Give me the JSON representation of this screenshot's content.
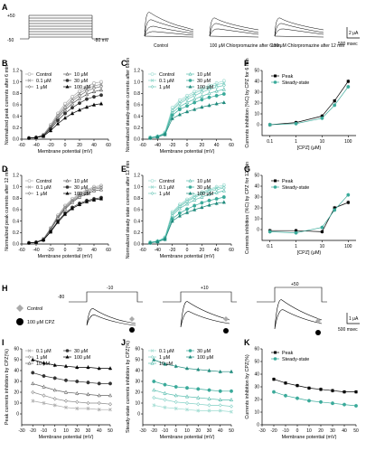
{
  "colors": {
    "black": "#000000",
    "dark": "#333333",
    "mid": "#777777",
    "light": "#aaaaaa",
    "teal": "#3aaa9a",
    "teal_light": "#7fcfc4"
  },
  "panel_letters": [
    "A",
    "B",
    "C",
    "D",
    "E",
    "F",
    "G",
    "H",
    "I",
    "J",
    "K"
  ],
  "panel_a": {
    "v_top": "+50",
    "v_bottom": "-50",
    "v_hold": "-80 mV",
    "trace_labels": [
      "Control",
      "100 μM Chlorpromazine after 6 min",
      "100 μM Chlorpromazine after 12 min"
    ],
    "scale_y": "2 μA",
    "scale_x": "500 msec"
  },
  "panel_h": {
    "legend": [
      "Control",
      "100 μM CPZ"
    ],
    "hold": "-80",
    "steps": [
      "-10",
      "+10",
      "+50"
    ],
    "scale_y": "1 μA",
    "scale_x": "500 msec"
  },
  "chart_data": [
    {
      "id": "B",
      "type": "line",
      "ylabel": "Normalized peak currents after 6 min",
      "xlabel": "Membrane potential (mV)",
      "xlim": [
        -60,
        60
      ],
      "ylim": [
        0,
        1.2
      ],
      "xticks": [
        "-60",
        "-40",
        "-20",
        "0",
        "20",
        "40",
        "60"
      ],
      "yticks": [
        "0.0",
        "0.2",
        "0.4",
        "0.6",
        "0.8",
        "1.0",
        "1.2"
      ],
      "legend": [
        "Control",
        "0.1 μM",
        "1 μM",
        "10 μM",
        "30 μM",
        "100 μM"
      ],
      "x": [
        -50,
        -40,
        -30,
        -20,
        -10,
        0,
        10,
        20,
        30,
        40,
        50
      ],
      "series": [
        {
          "name": "Control",
          "color": "#aaaaaa",
          "marker": "circle-open",
          "values": [
            0.02,
            0.03,
            0.08,
            0.25,
            0.45,
            0.62,
            0.74,
            0.84,
            0.92,
            0.98,
            1.0
          ]
        },
        {
          "name": "0.1 μM",
          "color": "#999999",
          "marker": "x",
          "values": [
            0.02,
            0.03,
            0.07,
            0.23,
            0.42,
            0.58,
            0.7,
            0.8,
            0.88,
            0.93,
            0.96
          ]
        },
        {
          "name": "1 μM",
          "color": "#777777",
          "marker": "diamond-open",
          "values": [
            0.02,
            0.03,
            0.07,
            0.22,
            0.4,
            0.55,
            0.67,
            0.76,
            0.84,
            0.89,
            0.92
          ]
        },
        {
          "name": "10 μM",
          "color": "#555555",
          "marker": "triangle-open",
          "values": [
            0.02,
            0.03,
            0.06,
            0.2,
            0.37,
            0.51,
            0.62,
            0.71,
            0.78,
            0.83,
            0.86
          ]
        },
        {
          "name": "30 μM",
          "color": "#333333",
          "marker": "circle",
          "values": [
            0.02,
            0.03,
            0.06,
            0.18,
            0.33,
            0.45,
            0.55,
            0.63,
            0.7,
            0.74,
            0.77
          ]
        },
        {
          "name": "100 μM",
          "color": "#000000",
          "marker": "triangle",
          "values": [
            0.02,
            0.03,
            0.05,
            0.15,
            0.27,
            0.37,
            0.45,
            0.51,
            0.56,
            0.6,
            0.62
          ]
        }
      ]
    },
    {
      "id": "C",
      "type": "line",
      "ylabel": "Normalized steady-state currents after 6min",
      "xlabel": "Membrane potential (mV)",
      "xlim": [
        -60,
        60
      ],
      "ylim": [
        0,
        1.2
      ],
      "xticks": [
        "-60",
        "-40",
        "-20",
        "0",
        "20",
        "40",
        "60"
      ],
      "yticks": [
        "0.0",
        "0.2",
        "0.4",
        "0.6",
        "0.8",
        "1.0",
        "1.2"
      ],
      "legend": [
        "Control",
        "0.1 μM",
        "1 μM",
        "10 μM",
        "30 μM",
        "100 μM"
      ],
      "x": [
        -50,
        -40,
        -30,
        -20,
        -10,
        0,
        10,
        20,
        30,
        40,
        50
      ],
      "series": [
        {
          "name": "Control",
          "color": "#9fdcd2",
          "marker": "circle-open",
          "values": [
            0.03,
            0.05,
            0.12,
            0.55,
            0.68,
            0.76,
            0.83,
            0.89,
            0.94,
            0.98,
            1.02
          ]
        },
        {
          "name": "0.1 μM",
          "color": "#8ad4c8",
          "marker": "x",
          "values": [
            0.03,
            0.05,
            0.11,
            0.52,
            0.65,
            0.73,
            0.8,
            0.86,
            0.91,
            0.95,
            0.98
          ]
        },
        {
          "name": "1 μM",
          "color": "#70c8ba",
          "marker": "diamond-open",
          "values": [
            0.03,
            0.05,
            0.1,
            0.5,
            0.62,
            0.7,
            0.76,
            0.82,
            0.87,
            0.91,
            0.94
          ]
        },
        {
          "name": "10 μM",
          "color": "#56bcad",
          "marker": "triangle-open",
          "values": [
            0.03,
            0.04,
            0.1,
            0.46,
            0.57,
            0.64,
            0.7,
            0.75,
            0.8,
            0.84,
            0.87
          ]
        },
        {
          "name": "30 μM",
          "color": "#3aaa9a",
          "marker": "circle",
          "values": [
            0.02,
            0.04,
            0.09,
            0.42,
            0.52,
            0.58,
            0.64,
            0.69,
            0.73,
            0.76,
            0.79
          ]
        },
        {
          "name": "100 μM",
          "color": "#1f8a7c",
          "marker": "triangle",
          "values": [
            0.02,
            0.04,
            0.08,
            0.36,
            0.43,
            0.48,
            0.52,
            0.56,
            0.59,
            0.62,
            0.64
          ]
        }
      ]
    },
    {
      "id": "F",
      "type": "line",
      "ylabel": "Currents inhibition (%C) by CPZ for 6 min",
      "xlabel": "[CPZ] (μM)",
      "xscale": "log",
      "xlim": [
        0.05,
        200
      ],
      "ylim": [
        -10,
        50
      ],
      "xticks": [
        "0.1",
        "1",
        "10",
        "100"
      ],
      "yticks": [
        "0",
        "10",
        "20",
        "30",
        "40",
        "50"
      ],
      "legend": [
        "Peak",
        "Steady-state"
      ],
      "x": [
        0.1,
        1,
        10,
        30,
        100
      ],
      "series": [
        {
          "name": "Peak",
          "color": "#000000",
          "marker": "square",
          "values": [
            0,
            2,
            8,
            22,
            40
          ]
        },
        {
          "name": "Steady-state",
          "color": "#3aaa9a",
          "marker": "circle",
          "values": [
            0,
            1,
            6,
            18,
            35
          ]
        }
      ]
    },
    {
      "id": "D",
      "type": "line",
      "ylabel": "Normalized peak currents after 12 min",
      "xlabel": "Membrane potential (mV)",
      "xlim": [
        -60,
        60
      ],
      "ylim": [
        0,
        1.2
      ],
      "xticks": [
        "-60",
        "-40",
        "-20",
        "0",
        "20",
        "40",
        "60"
      ],
      "yticks": [
        "0.0",
        "0.2",
        "0.4",
        "0.6",
        "0.8",
        "1.0",
        "1.2"
      ],
      "legend": [
        "Control",
        "0.1 μM",
        "1 μM",
        "10 μM",
        "30 μM",
        "100 μM"
      ],
      "x": [
        -50,
        -40,
        -30,
        -20,
        -10,
        0,
        10,
        20,
        30,
        40,
        50
      ],
      "series": [
        {
          "name": "Control",
          "color": "#aaaaaa",
          "marker": "circle-open",
          "values": [
            0.02,
            0.03,
            0.09,
            0.28,
            0.5,
            0.67,
            0.79,
            0.88,
            0.95,
            1.0,
            1.02
          ]
        },
        {
          "name": "0.1 μM",
          "color": "#999999",
          "marker": "x",
          "values": [
            0.02,
            0.03,
            0.09,
            0.27,
            0.48,
            0.65,
            0.77,
            0.86,
            0.93,
            0.98,
            1.0
          ]
        },
        {
          "name": "1 μM",
          "color": "#777777",
          "marker": "diamond-open",
          "values": [
            0.02,
            0.03,
            0.08,
            0.26,
            0.47,
            0.63,
            0.75,
            0.84,
            0.91,
            0.96,
            0.98
          ]
        },
        {
          "name": "10 μM",
          "color": "#555555",
          "marker": "triangle-open",
          "values": [
            0.02,
            0.03,
            0.08,
            0.25,
            0.45,
            0.61,
            0.73,
            0.82,
            0.88,
            0.93,
            0.95
          ]
        },
        {
          "name": "30 μM",
          "color": "#333333",
          "marker": "circle",
          "values": [
            0.02,
            0.03,
            0.07,
            0.22,
            0.4,
            0.54,
            0.64,
            0.71,
            0.76,
            0.79,
            0.81
          ]
        },
        {
          "name": "100 μM",
          "color": "#000000",
          "marker": "triangle",
          "values": [
            0.02,
            0.03,
            0.07,
            0.21,
            0.38,
            0.52,
            0.62,
            0.69,
            0.74,
            0.77,
            0.79
          ]
        }
      ]
    },
    {
      "id": "E",
      "type": "line",
      "ylabel": "Normalized steady state currents after 12 min",
      "xlabel": "Membrane potential (mV)",
      "xlim": [
        -60,
        60
      ],
      "ylim": [
        0,
        1.2
      ],
      "xticks": [
        "-60",
        "-40",
        "-20",
        "0",
        "20",
        "40",
        "60"
      ],
      "yticks": [
        "0.0",
        "0.2",
        "0.4",
        "0.6",
        "0.8",
        "1.0",
        "1.2"
      ],
      "legend": [
        "Control",
        "0.1 μM",
        "1 μM",
        "10 μM",
        "30 μM",
        "100 μM"
      ],
      "x": [
        -50,
        -40,
        -30,
        -20,
        -10,
        0,
        10,
        20,
        30,
        40,
        50
      ],
      "series": [
        {
          "name": "Control",
          "color": "#9fdcd2",
          "marker": "circle-open",
          "values": [
            0.03,
            0.05,
            0.12,
            0.56,
            0.69,
            0.78,
            0.85,
            0.91,
            0.96,
            1.0,
            1.03
          ]
        },
        {
          "name": "0.1 μM",
          "color": "#8ad4c8",
          "marker": "x",
          "values": [
            0.03,
            0.05,
            0.11,
            0.54,
            0.67,
            0.76,
            0.83,
            0.89,
            0.94,
            0.98,
            1.0
          ]
        },
        {
          "name": "1 μM",
          "color": "#70c8ba",
          "marker": "diamond-open",
          "values": [
            0.03,
            0.05,
            0.11,
            0.53,
            0.65,
            0.74,
            0.81,
            0.87,
            0.92,
            0.95,
            0.98
          ]
        },
        {
          "name": "10 μM",
          "color": "#56bcad",
          "marker": "triangle-open",
          "values": [
            0.03,
            0.05,
            0.1,
            0.5,
            0.62,
            0.7,
            0.77,
            0.82,
            0.87,
            0.9,
            0.93
          ]
        },
        {
          "name": "30 μM",
          "color": "#3aaa9a",
          "marker": "circle",
          "values": [
            0.02,
            0.04,
            0.09,
            0.44,
            0.54,
            0.61,
            0.67,
            0.72,
            0.76,
            0.79,
            0.82
          ]
        },
        {
          "name": "100 μM",
          "color": "#1f8a7c",
          "marker": "triangle",
          "values": [
            0.02,
            0.04,
            0.08,
            0.4,
            0.49,
            0.55,
            0.6,
            0.64,
            0.68,
            0.71,
            0.73
          ]
        }
      ]
    },
    {
      "id": "G",
      "type": "line",
      "ylabel": "Currents inhibition (%C) by CPZ for 12 min",
      "xlabel": "[CPZ] (μM)",
      "xscale": "log",
      "xlim": [
        0.05,
        200
      ],
      "ylim": [
        -10,
        50
      ],
      "xticks": [
        "0.1",
        "1",
        "10",
        "100"
      ],
      "yticks": [
        "0",
        "10",
        "20",
        "30",
        "40",
        "50"
      ],
      "legend": [
        "Peak",
        "Steady-state"
      ],
      "x": [
        0.1,
        1,
        10,
        30,
        100
      ],
      "series": [
        {
          "name": "Peak",
          "color": "#000000",
          "marker": "square",
          "values": [
            -1,
            -1,
            -2,
            20,
            25
          ]
        },
        {
          "name": "Steady-state",
          "color": "#3aaa9a",
          "marker": "circle",
          "values": [
            -2,
            -3,
            2,
            18,
            32
          ]
        }
      ]
    },
    {
      "id": "I",
      "type": "line",
      "ylabel": "Peak currents inhibition by CPZ(%)",
      "xlabel": "Membrane potential (mV)",
      "xlim": [
        -30,
        50
      ],
      "ylim": [
        -10,
        60
      ],
      "xticks": [
        "-30",
        "-20",
        "-10",
        "0",
        "10",
        "20",
        "30",
        "40",
        "50"
      ],
      "yticks": [
        "0",
        "10",
        "20",
        "30",
        "40",
        "50",
        "60"
      ],
      "legend": [
        "0.1 μM",
        "1 μM",
        "10 μM",
        "30 μM",
        "100 μM"
      ],
      "x": [
        -20,
        -10,
        0,
        10,
        20,
        30,
        40,
        50
      ],
      "series": [
        {
          "name": "0.1 μM",
          "color": "#aaaaaa",
          "marker": "x",
          "values": [
            12,
            10,
            8,
            6,
            5,
            5,
            4,
            4
          ]
        },
        {
          "name": "1 μM",
          "color": "#888888",
          "marker": "diamond-open",
          "values": [
            20,
            17,
            14,
            12,
            11,
            10,
            10,
            9
          ]
        },
        {
          "name": "10 μM",
          "color": "#666666",
          "marker": "triangle-open",
          "values": [
            28,
            25,
            22,
            20,
            19,
            18,
            17,
            17
          ]
        },
        {
          "name": "30 μM",
          "color": "#333333",
          "marker": "circle",
          "values": [
            38,
            35,
            33,
            31,
            30,
            29,
            28,
            28
          ]
        },
        {
          "name": "100 μM",
          "color": "#000000",
          "marker": "triangle",
          "values": [
            50,
            47,
            45,
            44,
            43,
            43,
            42,
            42
          ]
        }
      ]
    },
    {
      "id": "J",
      "type": "line",
      "ylabel": "Steady-state currents inhibition by CPZ(%)",
      "xlabel": "Membrane potential (mV)",
      "xlim": [
        -30,
        50
      ],
      "ylim": [
        -10,
        60
      ],
      "xticks": [
        "-30",
        "-20",
        "-10",
        "0",
        "10",
        "20",
        "30",
        "40",
        "50"
      ],
      "yticks": [
        "0",
        "10",
        "20",
        "30",
        "40",
        "50",
        "60"
      ],
      "legend": [
        "0.1 μM",
        "1 μM",
        "10 μM",
        "30 μM",
        "100 μM"
      ],
      "x": [
        -20,
        -10,
        0,
        10,
        20,
        30,
        40,
        50
      ],
      "series": [
        {
          "name": "0.1 μM",
          "color": "#9fdcd2",
          "marker": "x",
          "values": [
            8,
            6,
            5,
            4,
            3,
            3,
            3,
            2
          ]
        },
        {
          "name": "1 μM",
          "color": "#7fcfc4",
          "marker": "diamond-open",
          "values": [
            15,
            13,
            11,
            10,
            9,
            8,
            8,
            7
          ]
        },
        {
          "name": "10 μM",
          "color": "#56bcad",
          "marker": "triangle-open",
          "values": [
            22,
            19,
            17,
            16,
            15,
            14,
            13,
            13
          ]
        },
        {
          "name": "30 μM",
          "color": "#3aaa9a",
          "marker": "circle",
          "values": [
            30,
            27,
            25,
            24,
            23,
            22,
            21,
            21
          ]
        },
        {
          "name": "100 μM",
          "color": "#1f8a7c",
          "marker": "triangle",
          "values": [
            50,
            46,
            44,
            42,
            41,
            40,
            39,
            39
          ]
        }
      ]
    },
    {
      "id": "K",
      "type": "line",
      "ylabel": "Currents inhibition by CPZ(%)",
      "xlabel": "Membrane potential (mV)",
      "xlim": [
        -30,
        50
      ],
      "ylim": [
        0,
        60
      ],
      "xticks": [
        "-30",
        "-20",
        "-10",
        "0",
        "10",
        "20",
        "30",
        "40",
        "50"
      ],
      "yticks": [
        "0",
        "10",
        "20",
        "30",
        "40",
        "50",
        "60"
      ],
      "legend": [
        "Peak",
        "Steady-state"
      ],
      "x": [
        -20,
        -10,
        0,
        10,
        20,
        30,
        40,
        50
      ],
      "series": [
        {
          "name": "Peak",
          "color": "#000000",
          "marker": "square",
          "values": [
            36,
            33,
            31,
            29,
            28,
            27,
            26,
            26
          ]
        },
        {
          "name": "Steady-state",
          "color": "#3aaa9a",
          "marker": "circle",
          "values": [
            26,
            23,
            21,
            19,
            18,
            17,
            16,
            15
          ]
        }
      ]
    }
  ]
}
